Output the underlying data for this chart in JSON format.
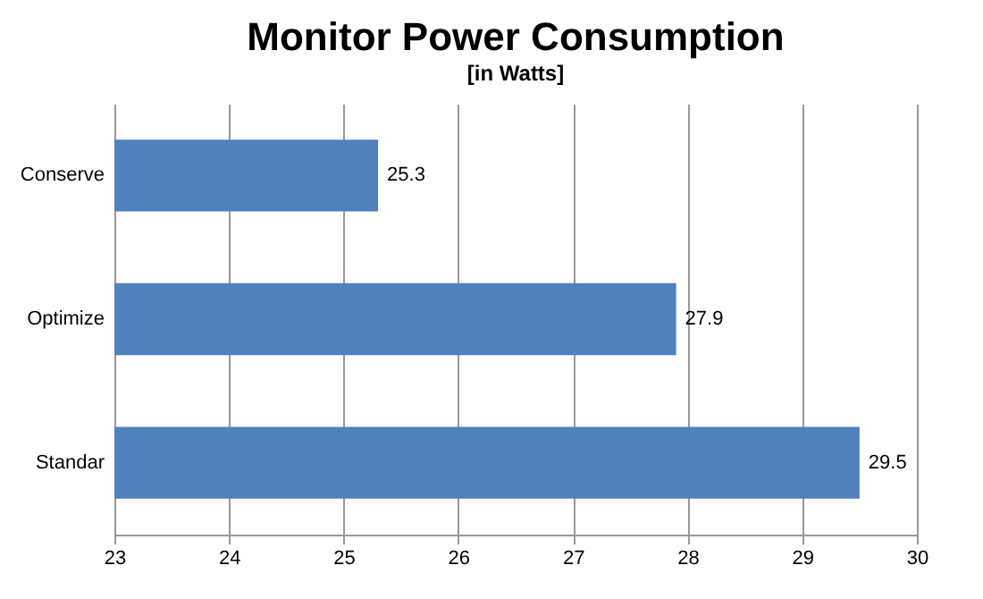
{
  "chart_data": {
    "type": "bar",
    "orientation": "horizontal",
    "title": "Monitor Power Consumption",
    "subtitle": "[in Watts]",
    "categories": [
      "Conserve",
      "Optimize",
      "Standar"
    ],
    "values": [
      25.3,
      27.9,
      29.5
    ],
    "color": "#4f81bd",
    "xlim": [
      23,
      30
    ],
    "xticks": [
      23,
      24,
      25,
      26,
      27,
      28,
      29,
      30
    ],
    "grid": "x",
    "data_labels": true
  }
}
